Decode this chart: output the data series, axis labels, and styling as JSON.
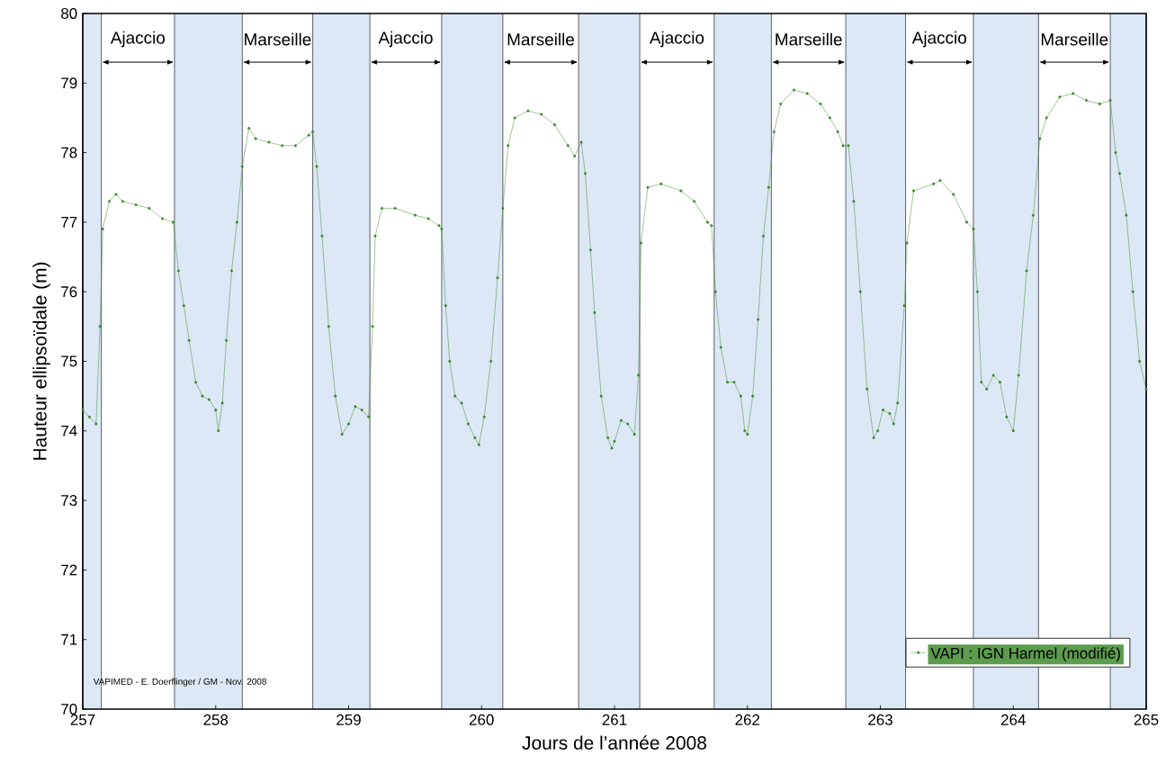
{
  "chart_data": {
    "type": "line",
    "xlabel": "Jours de l’année 2008",
    "ylabel": "Hauteur ellipsoïdale  (m)",
    "xlim": [
      257,
      265
    ],
    "ylim": [
      70,
      80
    ],
    "xticks": [
      257,
      258,
      259,
      260,
      261,
      262,
      263,
      264,
      265
    ],
    "yticks": [
      70,
      71,
      72,
      73,
      74,
      75,
      76,
      77,
      78,
      79,
      80
    ],
    "grid": false,
    "legend": "bottom right",
    "marker": "circle",
    "series": [
      {
        "name": "VAPI    : IGN Harmel (modifié)",
        "color": "#3f8a2e",
        "x": [
          257.0,
          257.05,
          257.1,
          257.13,
          257.15,
          257.2,
          257.25,
          257.3,
          257.4,
          257.5,
          257.6,
          257.68,
          257.72,
          257.76,
          257.8,
          257.85,
          257.9,
          257.95,
          258.0,
          258.02,
          258.05,
          258.08,
          258.12,
          258.16,
          258.2,
          258.25,
          258.3,
          258.4,
          258.5,
          258.6,
          258.7,
          258.73,
          258.76,
          258.8,
          258.85,
          258.9,
          258.95,
          259.0,
          259.05,
          259.1,
          259.15,
          259.18,
          259.2,
          259.25,
          259.35,
          259.5,
          259.6,
          259.68,
          259.7,
          259.73,
          259.76,
          259.8,
          259.85,
          259.9,
          259.95,
          259.98,
          260.02,
          260.07,
          260.12,
          260.16,
          260.2,
          260.25,
          260.35,
          260.45,
          260.55,
          260.65,
          260.7,
          260.75,
          260.78,
          260.82,
          260.85,
          260.9,
          260.95,
          260.98,
          261.0,
          261.05,
          261.1,
          261.15,
          261.18,
          261.2,
          261.25,
          261.35,
          261.5,
          261.6,
          261.7,
          261.73,
          261.76,
          261.8,
          261.85,
          261.9,
          261.95,
          261.98,
          262.0,
          262.04,
          262.08,
          262.12,
          262.16,
          262.2,
          262.25,
          262.35,
          262.45,
          262.55,
          262.62,
          262.68,
          262.72,
          262.76,
          262.8,
          262.85,
          262.9,
          262.95,
          262.98,
          263.02,
          263.07,
          263.1,
          263.13,
          263.18,
          263.2,
          263.25,
          263.4,
          263.45,
          263.55,
          263.65,
          263.7,
          263.73,
          263.76,
          263.8,
          263.85,
          263.9,
          263.95,
          264.0,
          264.04,
          264.1,
          264.15,
          264.2,
          264.25,
          264.35,
          264.45,
          264.55,
          264.65,
          264.73,
          264.77,
          264.8,
          264.85,
          264.9,
          264.95,
          265.0
        ],
        "values": [
          74.3,
          74.2,
          74.1,
          75.5,
          76.9,
          77.3,
          77.4,
          77.3,
          77.25,
          77.2,
          77.05,
          77.0,
          76.3,
          75.8,
          75.3,
          74.7,
          74.5,
          74.45,
          74.3,
          74.0,
          74.4,
          75.3,
          76.3,
          77.0,
          77.8,
          78.35,
          78.2,
          78.15,
          78.1,
          78.1,
          78.25,
          78.3,
          77.8,
          76.8,
          75.5,
          74.5,
          73.95,
          74.1,
          74.35,
          74.3,
          74.2,
          75.5,
          76.8,
          77.2,
          77.2,
          77.1,
          77.05,
          76.95,
          76.9,
          75.8,
          75.0,
          74.5,
          74.4,
          74.1,
          73.9,
          73.8,
          74.2,
          75.0,
          76.2,
          77.2,
          78.1,
          78.5,
          78.6,
          78.55,
          78.4,
          78.1,
          77.95,
          78.15,
          77.7,
          76.6,
          75.7,
          74.5,
          73.9,
          73.75,
          73.85,
          74.15,
          74.1,
          73.95,
          74.8,
          76.7,
          77.5,
          77.55,
          77.45,
          77.3,
          77.0,
          76.95,
          76.0,
          75.2,
          74.7,
          74.7,
          74.5,
          74.0,
          73.95,
          74.5,
          75.6,
          76.8,
          77.5,
          78.3,
          78.7,
          78.9,
          78.85,
          78.7,
          78.5,
          78.3,
          78.1,
          78.1,
          77.3,
          76.0,
          74.6,
          73.9,
          74.0,
          74.3,
          74.25,
          74.1,
          74.4,
          75.8,
          76.7,
          77.45,
          77.55,
          77.6,
          77.4,
          77.0,
          76.9,
          76.0,
          74.7,
          74.6,
          74.8,
          74.7,
          74.2,
          74.0,
          74.8,
          76.3,
          77.1,
          78.2,
          78.5,
          78.8,
          78.85,
          78.75,
          78.7,
          78.75,
          78.0,
          77.7,
          77.1,
          76.0,
          75.0,
          74.6
        ]
      }
    ],
    "bands": [
      {
        "axis": "x",
        "from": 257.0,
        "to": 257.14,
        "color": "#dce8f5"
      },
      {
        "axis": "x",
        "from": 257.69,
        "to": 258.2,
        "color": "#dce8f5"
      },
      {
        "axis": "x",
        "from": 258.73,
        "to": 259.16,
        "color": "#dce8f5"
      },
      {
        "axis": "x",
        "from": 259.7,
        "to": 260.16,
        "color": "#dce8f5"
      },
      {
        "axis": "x",
        "from": 260.73,
        "to": 261.19,
        "color": "#dce8f5"
      },
      {
        "axis": "x",
        "from": 261.75,
        "to": 262.18,
        "color": "#dce8f5"
      },
      {
        "axis": "x",
        "from": 262.74,
        "to": 263.19,
        "color": "#dce8f5"
      },
      {
        "axis": "x",
        "from": 263.7,
        "to": 264.19,
        "color": "#dce8f5"
      },
      {
        "axis": "x",
        "from": 264.73,
        "to": 265.0,
        "color": "#dce8f5"
      }
    ],
    "annotations": [
      "Ajaccio",
      "Marseille",
      "Ajaccio",
      "Marseille",
      "Ajaccio",
      "Marseille",
      "Ajaccio",
      "Marseille",
      "VAPIMED - E. Doerflinger / GM - Nov. 2008"
    ]
  }
}
